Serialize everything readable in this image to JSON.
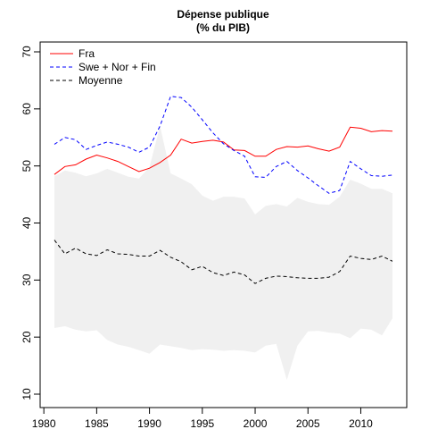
{
  "chart_data": {
    "type": "line",
    "title": "Dépense publique",
    "subtitle": "(% du PIB)",
    "xlabel": "",
    "ylabel": "",
    "xlim": [
      1981,
      2013
    ],
    "ylim": [
      10,
      70
    ],
    "x_ticks": [
      1980,
      1985,
      1990,
      1995,
      2000,
      2005,
      2010
    ],
    "y_ticks": [
      10,
      20,
      30,
      40,
      50,
      60,
      70
    ],
    "grid": false,
    "legend_position": "top-left",
    "x": [
      1981,
      1982,
      1983,
      1984,
      1985,
      1986,
      1987,
      1988,
      1989,
      1990,
      1991,
      1992,
      1993,
      1994,
      1995,
      1996,
      1997,
      1998,
      1999,
      2000,
      2001,
      2002,
      2003,
      2004,
      2005,
      2006,
      2007,
      2008,
      2009,
      2010,
      2011,
      2012,
      2013
    ],
    "series": [
      {
        "name": "Fra",
        "color": "#ff0000",
        "dash": "solid",
        "values": [
          48.5,
          49.9,
          50.2,
          51.2,
          51.9,
          51.4,
          50.8,
          49.9,
          49.0,
          49.6,
          50.6,
          51.9,
          54.7,
          54.0,
          54.3,
          54.5,
          54.2,
          52.8,
          52.7,
          51.7,
          51.7,
          52.9,
          53.4,
          53.3,
          53.5,
          53.0,
          52.6,
          53.3,
          56.8,
          56.6,
          56.0,
          56.2,
          56.1
        ]
      },
      {
        "name": "Swe + Nor + Fin",
        "color": "#0000ff",
        "dash": "dashed",
        "values": [
          53.8,
          55.0,
          54.6,
          52.9,
          53.6,
          54.2,
          53.8,
          53.3,
          52.4,
          53.3,
          57.0,
          62.2,
          62.0,
          60.3,
          58.1,
          55.8,
          53.9,
          52.7,
          51.7,
          48.1,
          48.0,
          49.9,
          50.8,
          49.2,
          47.9,
          46.5,
          45.2,
          45.7,
          50.8,
          49.5,
          48.3,
          48.2,
          48.4
        ]
      },
      {
        "name": "Moyenne",
        "color": "#000000",
        "dash": "dashed",
        "values": [
          37.0,
          34.6,
          35.6,
          34.6,
          34.3,
          35.3,
          34.6,
          34.5,
          34.2,
          34.2,
          35.2,
          34.0,
          33.2,
          31.8,
          32.4,
          31.3,
          30.8,
          31.4,
          30.9,
          29.4,
          30.3,
          30.7,
          30.6,
          30.4,
          30.3,
          30.3,
          30.5,
          31.5,
          34.2,
          33.8,
          33.6,
          34.2,
          33.3
        ]
      }
    ],
    "band": {
      "color": "#f0f0f0",
      "upper": [
        48.2,
        49.2,
        48.8,
        48.2,
        48.7,
        49.5,
        48.8,
        48.1,
        47.8,
        49.8,
        57.0,
        48.7,
        47.8,
        46.8,
        44.8,
        43.9,
        44.6,
        44.6,
        44.3,
        41.5,
        43.0,
        43.3,
        42.9,
        44.4,
        43.7,
        43.3,
        43.2,
        44.6,
        47.6,
        46.9,
        46.0,
        46.0,
        45.2
      ],
      "lower": [
        21.6,
        21.9,
        21.3,
        21.0,
        21.2,
        19.5,
        18.7,
        18.3,
        17.7,
        17.1,
        18.7,
        18.4,
        18.1,
        17.7,
        17.9,
        17.8,
        17.6,
        17.7,
        17.6,
        17.3,
        18.5,
        18.8,
        12.5,
        18.5,
        21.0,
        21.1,
        20.8,
        20.6,
        19.8,
        21.5,
        21.3,
        20.3,
        23.3
      ]
    }
  }
}
